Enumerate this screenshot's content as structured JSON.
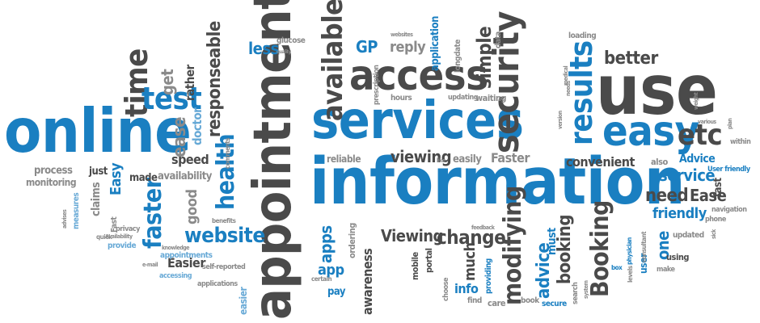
{
  "palette": {
    "blue": "#1a7fc1",
    "dark": "#4a4a4a",
    "gray": "#8a8a8a",
    "light_blue": "#67a9d6",
    "light_gray": "#b0b0b0"
  },
  "words": [
    {
      "text": "information",
      "color": "blue",
      "rot": 0
    },
    {
      "text": "appointment",
      "color": "dark",
      "rot": -90
    },
    {
      "text": "services",
      "color": "blue",
      "rot": 0
    },
    {
      "text": "online",
      "color": "blue",
      "rot": 0
    },
    {
      "text": "access",
      "color": "dark",
      "rot": 0
    },
    {
      "text": "use",
      "color": "dark",
      "rot": 0
    },
    {
      "text": "security",
      "color": "dark",
      "rot": -90
    },
    {
      "text": "easy",
      "color": "blue",
      "rot": 0
    },
    {
      "text": "results",
      "color": "blue",
      "rot": -90
    },
    {
      "text": "available",
      "color": "dark",
      "rot": -90
    },
    {
      "text": "health",
      "color": "blue",
      "rot": -90
    },
    {
      "text": "time",
      "color": "dark",
      "rot": -90
    },
    {
      "text": "test",
      "color": "blue",
      "rot": 0
    },
    {
      "text": "website",
      "color": "blue",
      "rot": 0
    },
    {
      "text": "faster",
      "color": "blue",
      "rot": -90
    },
    {
      "text": "Booking",
      "color": "dark",
      "rot": -90
    },
    {
      "text": "modifying",
      "color": "dark",
      "rot": -90
    },
    {
      "text": "etc",
      "color": "dark",
      "rot": 0
    },
    {
      "text": "change",
      "color": "dark",
      "rot": 0
    },
    {
      "text": "Viewing",
      "color": "dark",
      "rot": 0
    },
    {
      "text": "viewing",
      "color": "dark",
      "rot": 0
    },
    {
      "text": "simple",
      "color": "dark",
      "rot": -90
    },
    {
      "text": "better",
      "color": "dark",
      "rot": 0
    },
    {
      "text": "responseable",
      "color": "dark",
      "rot": -90
    },
    {
      "text": "ease",
      "color": "gray",
      "rot": -90
    },
    {
      "text": "get",
      "color": "gray",
      "rot": -90
    },
    {
      "text": "less",
      "color": "blue",
      "rot": 0
    },
    {
      "text": "GP",
      "color": "blue",
      "rot": 0
    },
    {
      "text": "reply",
      "color": "gray",
      "rot": 0
    },
    {
      "text": "service",
      "color": "blue",
      "rot": 0
    },
    {
      "text": "need",
      "color": "dark",
      "rot": 0
    },
    {
      "text": "Ease",
      "color": "dark",
      "rot": 0
    },
    {
      "text": "friendly",
      "color": "blue",
      "rot": 0
    },
    {
      "text": "convenient",
      "color": "dark",
      "rot": 0
    },
    {
      "text": "booking",
      "color": "dark",
      "rot": -90
    },
    {
      "text": "advice",
      "color": "blue",
      "rot": -90
    },
    {
      "text": "much",
      "color": "dark",
      "rot": -90
    },
    {
      "text": "apps",
      "color": "blue",
      "rot": -90
    },
    {
      "text": "app",
      "color": "blue",
      "rot": 0
    },
    {
      "text": "Easier",
      "color": "dark",
      "rot": 0
    },
    {
      "text": "speed",
      "color": "dark",
      "rot": 0
    },
    {
      "text": "good",
      "color": "gray",
      "rot": -90
    },
    {
      "text": "awareness",
      "color": "dark",
      "rot": -90
    },
    {
      "text": "info",
      "color": "blue",
      "rot": 0
    },
    {
      "text": "one",
      "color": "blue",
      "rot": -90
    },
    {
      "text": "Advice",
      "color": "blue",
      "rot": 0
    },
    {
      "text": "must",
      "color": "blue",
      "rot": -90
    },
    {
      "text": "Faster",
      "color": "gray",
      "rot": 0
    },
    {
      "text": "reliable",
      "color": "gray",
      "rot": 0
    },
    {
      "text": "easily",
      "color": "gray",
      "rot": 0
    },
    {
      "text": "Easy",
      "color": "blue",
      "rot": -90
    },
    {
      "text": "claims",
      "color": "gray",
      "rot": -90
    },
    {
      "text": "process",
      "color": "gray",
      "rot": 0
    },
    {
      "text": "monitoring",
      "color": "gray",
      "rot": 0
    },
    {
      "text": "just",
      "color": "dark",
      "rot": 0
    },
    {
      "text": "made",
      "color": "dark",
      "rot": 0
    },
    {
      "text": "availability",
      "color": "gray",
      "rot": 0
    },
    {
      "text": "doctor",
      "color": "light_blue",
      "rot": -90
    },
    {
      "text": "rather",
      "color": "dark",
      "rot": -90
    },
    {
      "text": "glucose",
      "color": "gray",
      "rot": 0
    },
    {
      "text": "application",
      "color": "blue",
      "rot": -90
    },
    {
      "text": "longdate",
      "color": "gray",
      "rot": -90
    },
    {
      "text": "data",
      "color": "gray",
      "rot": -90
    },
    {
      "text": "loading",
      "color": "gray",
      "rot": 0
    },
    {
      "text": "hours",
      "color": "gray",
      "rot": 0
    },
    {
      "text": "updating",
      "color": "gray",
      "rot": 0
    },
    {
      "text": "waiting",
      "color": "gray",
      "rot": 0
    },
    {
      "text": "prescription",
      "color": "gray",
      "rot": -90
    },
    {
      "text": "also",
      "color": "gray",
      "rot": 0
    },
    {
      "text": "within",
      "color": "gray",
      "rot": 0
    },
    {
      "text": "fast",
      "color": "dark",
      "rot": -90
    },
    {
      "text": "navigation",
      "color": "gray",
      "rot": 0
    },
    {
      "text": "phone",
      "color": "gray",
      "rot": 0
    },
    {
      "text": "updated",
      "color": "gray",
      "rot": 0
    },
    {
      "text": "using",
      "color": "dark",
      "rot": 0
    },
    {
      "text": "make",
      "color": "gray",
      "rot": 0
    },
    {
      "text": "user",
      "color": "blue",
      "rot": -90
    },
    {
      "text": "consultant",
      "color": "gray",
      "rot": -90
    },
    {
      "text": "levels",
      "color": "gray",
      "rot": -90
    },
    {
      "text": "search",
      "color": "gray",
      "rot": -90
    },
    {
      "text": "book",
      "color": "gray",
      "rot": 0
    },
    {
      "text": "secure",
      "color": "blue",
      "rot": 0
    },
    {
      "text": "find",
      "color": "gray",
      "rot": 0
    },
    {
      "text": "care",
      "color": "gray",
      "rot": 0
    },
    {
      "text": "providing",
      "color": "blue",
      "rot": -90
    },
    {
      "text": "choose",
      "color": "gray",
      "rot": -90
    },
    {
      "text": "mobile",
      "color": "dark",
      "rot": -90
    },
    {
      "text": "portal",
      "color": "dark",
      "rot": -90
    },
    {
      "text": "ordering",
      "color": "gray",
      "rot": -90
    },
    {
      "text": "pay",
      "color": "blue",
      "rot": 0
    },
    {
      "text": "certain",
      "color": "gray",
      "rot": 0
    },
    {
      "text": "self-reported",
      "color": "gray",
      "rot": 0
    },
    {
      "text": "applications",
      "color": "gray",
      "rot": 0
    },
    {
      "text": "accessing",
      "color": "light_blue",
      "rot": 0
    },
    {
      "text": "appointments",
      "color": "light_blue",
      "rot": 0
    },
    {
      "text": "knowledge",
      "color": "gray",
      "rot": 0
    },
    {
      "text": "provide",
      "color": "light_blue",
      "rot": 0
    },
    {
      "text": "quick",
      "color": "gray",
      "rot": 0
    },
    {
      "text": "Fast",
      "color": "gray",
      "rot": -90
    },
    {
      "text": "measures",
      "color": "light_blue",
      "rot": -90
    },
    {
      "text": "advises",
      "color": "gray",
      "rot": -90
    },
    {
      "text": "privacy",
      "color": "gray",
      "rot": 0
    },
    {
      "text": "Availability",
      "color": "gray",
      "rot": 0
    },
    {
      "text": "easier",
      "color": "light_blue",
      "rot": -90
    },
    {
      "text": "e-mail",
      "color": "gray",
      "rot": 0
    },
    {
      "text": "comments",
      "color": "gray",
      "rot": -90
    },
    {
      "text": "benefits",
      "color": "gray",
      "rot": 0
    },
    {
      "text": "feedback",
      "color": "gray",
      "rot": 0
    },
    {
      "text": "websites",
      "color": "gray",
      "rot": 0
    },
    {
      "text": "medical",
      "color": "gray",
      "rot": -90
    },
    {
      "text": "needs",
      "color": "gray",
      "rot": -90
    },
    {
      "text": "version",
      "color": "gray",
      "rot": -90
    },
    {
      "text": "various",
      "color": "gray",
      "rot": 0
    },
    {
      "text": "weight",
      "color": "gray",
      "rot": -90
    },
    {
      "text": "plan",
      "color": "gray",
      "rot": -90
    },
    {
      "text": "sick",
      "color": "gray",
      "rot": -90
    },
    {
      "text": "physician",
      "color": "blue",
      "rot": -90
    },
    {
      "text": "box",
      "color": "blue",
      "rot": 0
    },
    {
      "text": "system",
      "color": "gray",
      "rot": -90
    },
    {
      "text": "User friendly",
      "color": "blue",
      "rot": 0
    },
    {
      "text": "like",
      "color": "gray",
      "rot": 0
    },
    {
      "text": "quality",
      "color": "gray",
      "rot": 0
    }
  ]
}
